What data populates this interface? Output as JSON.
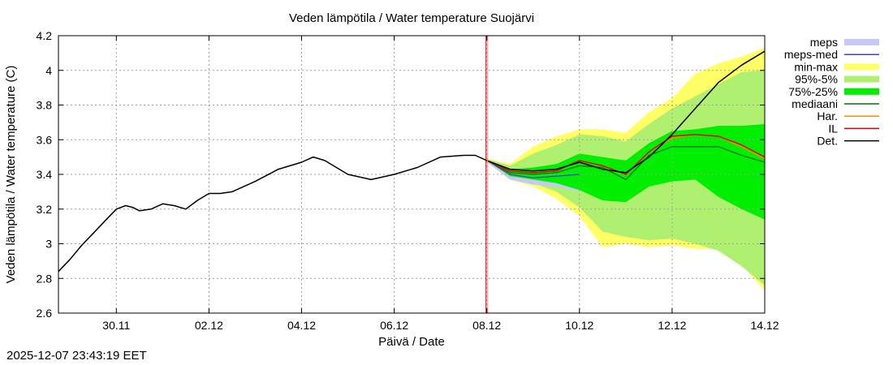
{
  "chart_data": {
    "type": "line",
    "title": "Veden lämpötila / Water temperature Suojärvi",
    "xlabel": "Päivä / Date",
    "ylabel": "Veden lämpötila / Water temperature (C)",
    "ylim": [
      2.6,
      4.2
    ],
    "xlim": [
      -1.25,
      14.0
    ],
    "x_unit": "days from 30.11 00:00",
    "grid": true,
    "yticks": [
      2.6,
      2.8,
      3.0,
      3.2,
      3.4,
      3.6,
      3.8,
      4.0,
      4.2
    ],
    "ytick_labels": [
      "2.6",
      "2.8",
      "3",
      "3.2",
      "3.4",
      "3.6",
      "3.8",
      "4",
      "4.2"
    ],
    "xticks": [
      0,
      2,
      4,
      6,
      8,
      10,
      12,
      14
    ],
    "xtick_labels": [
      "30.11",
      "02.12",
      "04.12",
      "06.12",
      "08.12",
      "10.12",
      "12.12",
      "14.12"
    ],
    "forecast_start": 8.0,
    "colors": {
      "meps": "#c8c8f5",
      "meps_med": "#4040c0",
      "min_max": "#ffff66",
      "p95_5": "#b0f070",
      "p75_25": "#00ee00",
      "mediaani": "#007700",
      "har": "#ff8c00",
      "il": "#dd0000",
      "det": "#000000",
      "forecast_line": "#cc0000"
    },
    "legend_position": "right",
    "legend": [
      {
        "label": "meps",
        "key": "meps",
        "style": "band"
      },
      {
        "label": "meps-med",
        "key": "meps_med",
        "style": "line"
      },
      {
        "label": "min-max",
        "key": "min_max",
        "style": "band"
      },
      {
        "label": "95%-5%",
        "key": "p95_5",
        "style": "band"
      },
      {
        "label": "75%-25%",
        "key": "p75_25",
        "style": "band"
      },
      {
        "label": "mediaani",
        "key": "mediaani",
        "style": "line"
      },
      {
        "label": "Har.",
        "key": "har",
        "style": "line"
      },
      {
        "label": "IL",
        "key": "il",
        "style": "line"
      },
      {
        "label": "Det.",
        "key": "det",
        "style": "line"
      }
    ],
    "observed": {
      "x": [
        -1.25,
        -1.0,
        -0.75,
        -0.5,
        -0.25,
        0.0,
        0.2,
        0.35,
        0.5,
        0.75,
        1.0,
        1.25,
        1.5,
        1.75,
        2.0,
        2.25,
        2.5,
        3.0,
        3.5,
        4.0,
        4.25,
        4.5,
        5.0,
        5.5,
        6.0,
        6.5,
        7.0,
        7.5,
        7.75,
        8.0
      ],
      "y": [
        2.84,
        2.91,
        2.99,
        3.06,
        3.13,
        3.2,
        3.22,
        3.21,
        3.19,
        3.2,
        3.23,
        3.22,
        3.2,
        3.25,
        3.29,
        3.29,
        3.3,
        3.36,
        3.43,
        3.47,
        3.5,
        3.48,
        3.4,
        3.37,
        3.4,
        3.44,
        3.5,
        3.51,
        3.51,
        3.48
      ]
    },
    "forecast_x": [
      8.0,
      8.5,
      9.0,
      9.5,
      10.0,
      10.5,
      11.0,
      11.5,
      12.0,
      12.5,
      13.0,
      13.5,
      14.0
    ],
    "series": [
      {
        "name": "Det.",
        "key": "det",
        "values": [
          3.48,
          3.43,
          3.42,
          3.43,
          3.47,
          3.43,
          3.41,
          3.5,
          3.63,
          3.78,
          3.93,
          4.03,
          4.11
        ]
      },
      {
        "name": "IL",
        "key": "il",
        "values": [
          3.48,
          3.42,
          3.41,
          3.42,
          3.48,
          3.45,
          3.4,
          3.53,
          3.62,
          3.63,
          3.62,
          3.57,
          3.5
        ]
      },
      {
        "name": "Har.",
        "key": "har",
        "values": [
          3.48,
          3.42,
          3.41,
          3.42,
          3.48,
          3.45,
          3.4,
          3.53,
          3.61,
          3.63,
          3.62,
          3.56,
          3.49
        ]
      },
      {
        "name": "mediaani",
        "key": "mediaani",
        "values": [
          3.48,
          3.41,
          3.4,
          3.41,
          3.45,
          3.44,
          3.37,
          3.51,
          3.56,
          3.56,
          3.56,
          3.51,
          3.47
        ]
      },
      {
        "name": "meps-med",
        "key": "meps_med",
        "values": [
          3.48,
          3.4,
          3.38,
          3.39,
          3.4
        ]
      }
    ],
    "bands": [
      {
        "name": "min-max",
        "key": "min_max",
        "upper": [
          3.49,
          3.46,
          3.56,
          3.62,
          3.66,
          3.66,
          3.64,
          3.76,
          3.84,
          3.98,
          4.04,
          4.08,
          4.13
        ],
        "lower": [
          3.47,
          3.37,
          3.33,
          3.26,
          3.16,
          2.98,
          3.0,
          2.98,
          2.99,
          2.97,
          2.97,
          2.88,
          2.73
        ]
      },
      {
        "name": "95%-5%",
        "key": "p95_5",
        "upper": [
          3.49,
          3.45,
          3.52,
          3.57,
          3.63,
          3.62,
          3.59,
          3.69,
          3.78,
          3.85,
          3.92,
          3.99,
          4.0
        ]
      },
      {
        "name": "75%-25%",
        "key": "p75_25",
        "upper": [
          3.48,
          3.43,
          3.44,
          3.46,
          3.52,
          3.5,
          3.48,
          3.58,
          3.65,
          3.66,
          3.68,
          3.68,
          3.69
        ],
        "lower": [
          3.48,
          3.39,
          3.37,
          3.35,
          3.31,
          3.25,
          3.24,
          3.33,
          3.36,
          3.37,
          3.27,
          3.2,
          3.14
        ]
      },
      {
        "name": "meps",
        "key": "meps",
        "upper": [
          3.48,
          3.42,
          3.41,
          3.41,
          3.4
        ],
        "lower": [
          3.47,
          3.37,
          3.34,
          3.33,
          3.3
        ]
      }
    ],
    "band_95_lower": [
      3.47,
      3.38,
      3.35,
      3.3,
      3.21,
      3.07,
      3.04,
      3.02,
      3.03,
      3.0,
      2.96,
      2.87,
      2.76
    ],
    "timestamp": "2025-12-07 23:43:19 EET"
  }
}
